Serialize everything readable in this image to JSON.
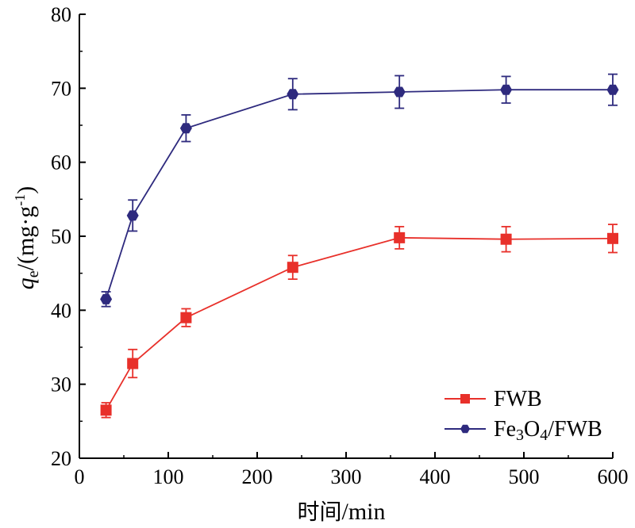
{
  "chart_data": {
    "type": "line",
    "xlabel_cn": "时间",
    "xlabel_unit": "/min",
    "ylabel_q": "q",
    "ylabel_sub": "e",
    "ylabel_unit_pre": "/(mg·g",
    "ylabel_sup": "-1",
    "ylabel_unit_post": ")",
    "xlim": [
      0,
      600
    ],
    "ylim": [
      20,
      80
    ],
    "xticks": [
      0,
      100,
      200,
      300,
      400,
      500,
      600
    ],
    "yticks": [
      20,
      30,
      40,
      50,
      60,
      70,
      80
    ],
    "grid": false,
    "legend_position": "bottom-right",
    "x": [
      30,
      60,
      120,
      240,
      360,
      480,
      600
    ],
    "series": [
      {
        "name": "FWB",
        "name_parts": [
          "FWB"
        ],
        "color": "#e8302a",
        "marker": "square",
        "values": [
          26.5,
          32.8,
          39.0,
          45.8,
          49.8,
          49.6,
          49.7
        ],
        "errors": [
          1.0,
          1.9,
          1.2,
          1.6,
          1.5,
          1.7,
          1.9
        ]
      },
      {
        "name": "Fe3O4/FWB",
        "name_parts": [
          "Fe",
          "3",
          "O",
          "4",
          "/FWB"
        ],
        "color": "#2e2a7e",
        "marker": "hexagon",
        "values": [
          41.5,
          52.8,
          64.6,
          69.2,
          69.5,
          69.8,
          69.8
        ],
        "errors": [
          1.0,
          2.1,
          1.8,
          2.1,
          2.2,
          1.8,
          2.1
        ]
      }
    ]
  }
}
